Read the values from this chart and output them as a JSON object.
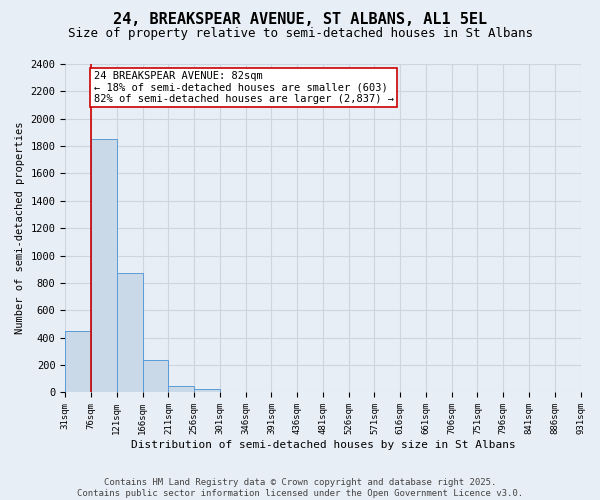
{
  "title_line1": "24, BREAKSPEAR AVENUE, ST ALBANS, AL1 5EL",
  "title_line2": "Size of property relative to semi-detached houses in St Albans",
  "xlabel": "Distribution of semi-detached houses by size in St Albans",
  "ylabel": "Number of semi-detached properties",
  "bar_values": [
    450,
    1850,
    870,
    235,
    50,
    25,
    0,
    0,
    0,
    0,
    0,
    0,
    0,
    0,
    0,
    0,
    0,
    0,
    0,
    0
  ],
  "bin_labels": [
    "31sqm",
    "76sqm",
    "121sqm",
    "166sqm",
    "211sqm",
    "256sqm",
    "301sqm",
    "346sqm",
    "391sqm",
    "436sqm",
    "481sqm",
    "526sqm",
    "571sqm",
    "616sqm",
    "661sqm",
    "706sqm",
    "751sqm",
    "796sqm",
    "841sqm",
    "886sqm",
    "931sqm"
  ],
  "bar_color": "#c9d9e8",
  "bar_edge_color": "#5b9bd5",
  "grid_color": "#cdd5e0",
  "background_color": "#e8eef5",
  "vline_color": "#cc0000",
  "annotation_text": "24 BREAKSPEAR AVENUE: 82sqm\n← 18% of semi-detached houses are smaller (603)\n82% of semi-detached houses are larger (2,837) →",
  "annotation_box_color": "#ffffff",
  "annotation_box_edge": "#cc0000",
  "ylim": [
    0,
    2400
  ],
  "yticks": [
    0,
    200,
    400,
    600,
    800,
    1000,
    1200,
    1400,
    1600,
    1800,
    2000,
    2200,
    2400
  ],
  "footnote": "Contains HM Land Registry data © Crown copyright and database right 2025.\nContains public sector information licensed under the Open Government Licence v3.0.",
  "title_fontsize": 11,
  "subtitle_fontsize": 9,
  "annotation_fontsize": 7.5,
  "footnote_fontsize": 6.5
}
